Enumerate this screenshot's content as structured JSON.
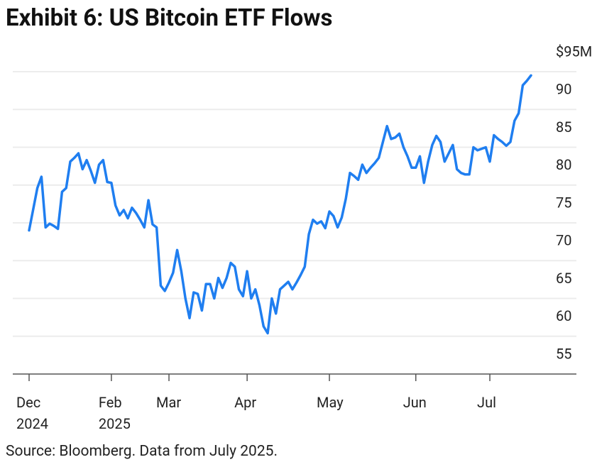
{
  "chart_data": {
    "type": "line",
    "title": "Exhibit 6: US Bitcoin ETF Flows",
    "source": "Source: Bloomberg. Data from July 2025.",
    "categories": [
      "Dec 2024",
      null,
      null,
      null,
      null,
      null,
      null,
      null,
      null,
      null,
      null,
      null,
      null,
      null,
      null,
      null,
      null,
      null,
      null,
      null,
      "Feb 2025",
      null,
      null,
      null,
      null,
      null,
      null,
      null,
      null,
      null,
      null,
      null,
      null,
      null,
      "Mar",
      null,
      null,
      null,
      null,
      null,
      null,
      null,
      null,
      null,
      null,
      null,
      null,
      null,
      null,
      null,
      null,
      null,
      null,
      "Apr",
      null,
      null,
      null,
      null,
      null,
      null,
      null,
      null,
      null,
      null,
      null,
      null,
      null,
      null,
      null,
      null,
      null,
      null,
      null,
      "May",
      null,
      null,
      null,
      null,
      null,
      null,
      null,
      null,
      null,
      null,
      null,
      null,
      null,
      null,
      null,
      null,
      null,
      null,
      null,
      null,
      "Jun",
      null,
      null,
      null,
      null,
      null,
      null,
      null,
      null,
      null,
      null,
      null,
      null,
      null,
      null,
      null,
      null,
      null,
      "Jul",
      null,
      null,
      null,
      null,
      null,
      null,
      null,
      null,
      null,
      null
    ],
    "values": [
      74.0,
      76.8,
      79.6,
      81.1,
      74.4,
      74.9,
      74.6,
      74.2,
      79.1,
      79.6,
      83.1,
      83.6,
      84.2,
      82.1,
      83.3,
      81.9,
      80.3,
      82.7,
      83.3,
      80.4,
      80.3,
      77.3,
      76.0,
      76.7,
      75.6,
      77.0,
      76.3,
      75.4,
      74.4,
      78.0,
      74.8,
      74.4,
      66.7,
      66.0,
      67.1,
      68.4,
      71.4,
      68.6,
      65.0,
      62.4,
      65.8,
      65.6,
      63.4,
      66.9,
      66.9,
      65.0,
      67.7,
      66.4,
      67.7,
      69.7,
      69.2,
      66.2,
      65.3,
      68.6,
      65.0,
      66.2,
      64.1,
      61.3,
      60.4,
      65.0,
      63.0,
      66.2,
      66.7,
      67.2,
      66.2,
      67.1,
      68.1,
      69.2,
      73.5,
      75.4,
      74.9,
      75.2,
      74.3,
      76.5,
      75.9,
      74.4,
      75.7,
      78.2,
      81.6,
      81.2,
      80.7,
      82.7,
      81.6,
      82.3,
      82.9,
      83.6,
      85.7,
      87.8,
      86.1,
      86.3,
      86.8,
      85.0,
      83.8,
      82.3,
      82.3,
      83.8,
      80.3,
      83.1,
      85.3,
      86.5,
      85.7,
      83.1,
      84.2,
      85.3,
      82.1,
      81.6,
      81.4,
      81.4,
      85.0,
      84.6,
      84.8,
      85.0,
      83.1,
      86.6,
      86.1,
      85.7,
      85.2,
      85.7,
      88.5,
      89.5,
      93.2,
      93.8,
      94.5
    ],
    "color": "#1f7ef0",
    "ylim": [
      55,
      95
    ],
    "yticks": [
      55,
      60,
      65,
      70,
      75,
      80,
      85,
      90,
      {
        "value": 95,
        "label": "$95M"
      }
    ],
    "grid": true
  }
}
